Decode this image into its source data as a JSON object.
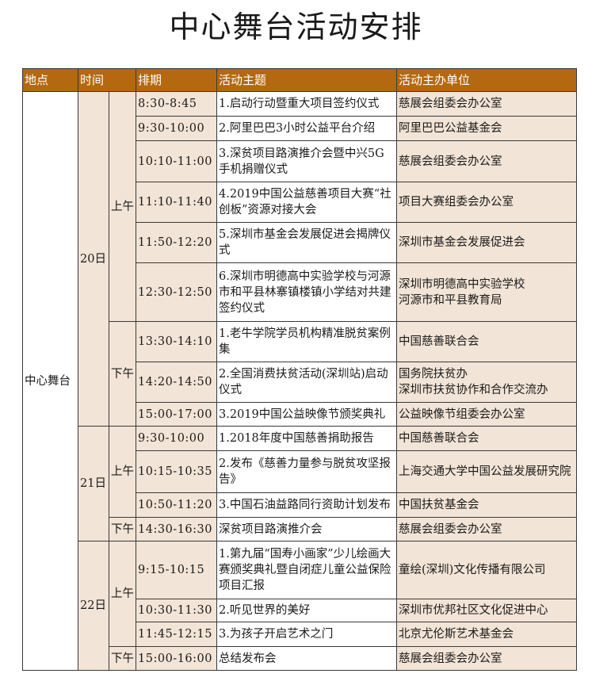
{
  "title": "中心舞台活动安排",
  "colors": {
    "header_bg": "#b4680f",
    "cell_beige": "#f2e4d6",
    "cell_white": "#ffffff"
  },
  "headers": [
    "地点",
    "时间",
    "排期",
    "活动主题",
    "活动主办单位"
  ],
  "location": "中心舞台",
  "days": [
    {
      "label": "20日",
      "halves": [
        {
          "label": "上午",
          "rows": [
            {
              "time": "8:30-8:45",
              "topic": "1.启动行动暨重大项目签约仪式",
              "org": "慈展会组委会办公室"
            },
            {
              "time": "9:30-10:00",
              "topic": "2.阿里巴巴3小时公益平台介绍",
              "org": "阿里巴巴公益基金会"
            },
            {
              "time": "10:10-11:00",
              "topic": "3.深贫项目路演推介会暨中兴5G手机捐赠仪式",
              "org": "慈展会组委会办公室"
            },
            {
              "time": "11:10-11:40",
              "topic": "4.2019中国公益慈善项目大赛“社创板”资源对接大会",
              "org": "项目大赛组委会办公室"
            },
            {
              "time": "11:50-12:20",
              "topic": "5.深圳市基金会发展促进会揭牌仪式",
              "org": "深圳市基金会发展促进会"
            },
            {
              "time": "12:30-12:50",
              "topic": "6.深圳市明德高中实验学校与河源市和平县林寨镇楼镇小学结对共建签约仪式",
              "org": "深圳市明德高中实验学校\n河源市和平县教育局"
            }
          ]
        },
        {
          "label": "下午",
          "rows": [
            {
              "time": "13:30-14:10",
              "topic": "1.老牛学院学员机构精准脱贫案例集",
              "org": "中国慈善联合会"
            },
            {
              "time": "14:20-14:50",
              "topic": "2.全国消费扶贫活动(深圳站)启动仪式",
              "org": "国务院扶贫办\n深圳市扶贫协作和合作交流办"
            },
            {
              "time": "15:00-17:00",
              "topic": "3.2019中国公益映像节颁奖典礼",
              "org": "公益映像节组委会办公室"
            }
          ]
        }
      ]
    },
    {
      "label": "21日",
      "halves": [
        {
          "label": "上午",
          "rows": [
            {
              "time": "9:30-10:00",
              "topic": "1.2018年度中国慈善捐助报告",
              "org": "中国慈善联合会"
            },
            {
              "time": "10:15-10:35",
              "topic": "2.发布《慈善力量参与脱贫攻坚报告》",
              "org": "上海交通大学中国公益发展研究院"
            },
            {
              "time": "10:50-11:20",
              "topic": "3.中国石油益路同行资助计划发布",
              "org": "中国扶贫基金会"
            }
          ]
        },
        {
          "label": "下午",
          "rows": [
            {
              "time": "14:30-16:30",
              "topic": "深贫项目路演推介会",
              "org": "慈展会组委会办公室"
            }
          ]
        }
      ]
    },
    {
      "label": "22日",
      "halves": [
        {
          "label": "上午",
          "rows": [
            {
              "time": "9:15-10:15",
              "topic": "1.第九届“国寿小画家”少儿绘画大赛颁奖典礼暨自闭症儿童公益保险项目汇报",
              "org": "童绘(深圳)文化传播有限公司"
            },
            {
              "time": "10:30-11:30",
              "topic": "2.听见世界的美好",
              "org": "深圳市优邦社区文化促进中心"
            },
            {
              "time": "11:45-12:15",
              "topic": "3.为孩子开启艺术之门",
              "org": "北京尤伦斯艺术基金会"
            }
          ]
        },
        {
          "label": "下午",
          "rows": [
            {
              "time": "15:00-16:00",
              "topic": "总结发布会",
              "org": "慈展会组委会办公室"
            }
          ]
        }
      ]
    }
  ]
}
